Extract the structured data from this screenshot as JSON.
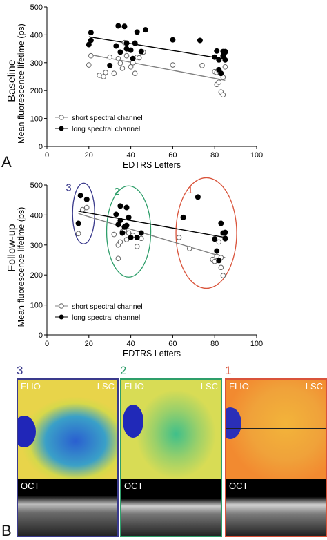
{
  "panels": {
    "a_label": "A",
    "b_label": "B",
    "baseline_row_label": "Baseline",
    "followup_row_label": "Follow-up"
  },
  "legend": {
    "short_label": "short spectral channel",
    "long_label": "long spectral channel"
  },
  "colors": {
    "short": "#ffffff",
    "long": "#000000",
    "group1": "#d9533a",
    "group2": "#2e9e6a",
    "group3": "#3a3a8c",
    "regression_short": "#808080",
    "regression_long": "#000000"
  },
  "chart_data": [
    {
      "type": "scatter",
      "xlabel": "EDTRS Letters",
      "ylabel": "Mean fluorescence lifetime (ps)",
      "xlim": [
        0,
        100
      ],
      "ylim": [
        0,
        500
      ],
      "xticks": [
        0,
        20,
        40,
        60,
        80,
        100
      ],
      "yticks": [
        0,
        100,
        200,
        300,
        400,
        500
      ],
      "legend_position": "bottom-left",
      "series": [
        {
          "name": "short spectral channel",
          "marker": "open-circle",
          "points": [
            [
              20,
              292
            ],
            [
              21,
              325
            ],
            [
              25,
              255
            ],
            [
              27,
              250
            ],
            [
              28,
              265
            ],
            [
              30,
              320
            ],
            [
              32,
              262
            ],
            [
              34,
              315
            ],
            [
              35,
              298
            ],
            [
              36,
              280
            ],
            [
              37,
              372
            ],
            [
              38,
              325
            ],
            [
              40,
              285
            ],
            [
              41,
              300
            ],
            [
              42,
              262
            ],
            [
              43,
              320
            ],
            [
              44,
              318
            ],
            [
              46,
              338
            ],
            [
              60,
              292
            ],
            [
              74,
              290
            ],
            [
              80,
              268
            ],
            [
              81,
              265
            ],
            [
              81,
              222
            ],
            [
              82,
              270
            ],
            [
              82,
              230
            ],
            [
              83,
              195
            ],
            [
              84,
              185
            ],
            [
              84,
              248
            ],
            [
              85,
              285
            ]
          ],
          "fit": [
            [
              20,
              330
            ],
            [
              85,
              237
            ]
          ]
        },
        {
          "name": "long spectral channel",
          "marker": "filled-circle",
          "points": [
            [
              20,
              365
            ],
            [
              21,
              380
            ],
            [
              21,
              408
            ],
            [
              30,
              290
            ],
            [
              33,
              360
            ],
            [
              34,
              432
            ],
            [
              35,
              338
            ],
            [
              37,
              430
            ],
            [
              38,
              370
            ],
            [
              38,
              350
            ],
            [
              40,
              345
            ],
            [
              41,
              315
            ],
            [
              42,
              370
            ],
            [
              43,
              410
            ],
            [
              45,
              340
            ],
            [
              47,
              418
            ],
            [
              60,
              382
            ],
            [
              73,
              380
            ],
            [
              80,
              320
            ],
            [
              81,
              342
            ],
            [
              82,
              275
            ],
            [
              82,
              310
            ],
            [
              83,
              262
            ],
            [
              84,
              325
            ],
            [
              84,
              340
            ],
            [
              85,
              340
            ],
            [
              85,
              338
            ],
            [
              85,
              310
            ]
          ],
          "fit": [
            [
              20,
              393
            ],
            [
              85,
              313
            ]
          ]
        }
      ]
    },
    {
      "type": "scatter",
      "xlabel": "EDTRS Letters",
      "ylabel": "Mean fluorescence lifetime (ps)",
      "xlim": [
        0,
        100
      ],
      "ylim": [
        0,
        500
      ],
      "xticks": [
        0,
        20,
        40,
        60,
        80,
        100
      ],
      "yticks": [
        0,
        100,
        200,
        300,
        400,
        500
      ],
      "legend_position": "bottom-left",
      "annotations": [
        "3",
        "2",
        "1"
      ],
      "series": [
        {
          "name": "short spectral channel",
          "marker": "open-circle",
          "points": [
            [
              15,
              338
            ],
            [
              17,
              418
            ],
            [
              19,
              425
            ],
            [
              32,
              335
            ],
            [
              34,
              255
            ],
            [
              34,
              300
            ],
            [
              35,
              310
            ],
            [
              36,
              345
            ],
            [
              37,
              350
            ],
            [
              38,
              318
            ],
            [
              39,
              340
            ],
            [
              41,
              332
            ],
            [
              43,
              295
            ],
            [
              45,
              322
            ],
            [
              63,
              325
            ],
            [
              68,
              288
            ],
            [
              79,
              252
            ],
            [
              80,
              245
            ],
            [
              81,
              262
            ],
            [
              82,
              310
            ],
            [
              83,
              258
            ],
            [
              83,
              225
            ],
            [
              84,
              198
            ],
            [
              84,
              335
            ],
            [
              85,
              320
            ]
          ],
          "fit": [
            [
              15,
              405
            ],
            [
              85,
              258
            ]
          ]
        },
        {
          "name": "long spectral channel",
          "marker": "filled-circle",
          "points": [
            [
              15,
              372
            ],
            [
              16,
              465
            ],
            [
              19,
              452
            ],
            [
              33,
              402
            ],
            [
              34,
              368
            ],
            [
              35,
              382
            ],
            [
              35,
              430
            ],
            [
              36,
              340
            ],
            [
              37,
              360
            ],
            [
              38,
              425
            ],
            [
              38,
              365
            ],
            [
              39,
              392
            ],
            [
              40,
              325
            ],
            [
              43,
              325
            ],
            [
              45,
              340
            ],
            [
              65,
              392
            ],
            [
              72,
              460
            ],
            [
              80,
              320
            ],
            [
              81,
              280
            ],
            [
              82,
              248
            ],
            [
              83,
              372
            ],
            [
              84,
              340
            ],
            [
              85,
              342
            ],
            [
              85,
              322
            ]
          ],
          "fit": [
            [
              15,
              413
            ],
            [
              85,
              325
            ]
          ]
        }
      ]
    }
  ],
  "images": {
    "tiles": [
      {
        "number": "3",
        "flio_label": "FLIO",
        "lsc_label": "LSC",
        "oct_label": "OCT"
      },
      {
        "number": "2",
        "flio_label": "FLIO",
        "lsc_label": "LSC",
        "oct_label": "OCT"
      },
      {
        "number": "1",
        "flio_label": "FLIO",
        "lsc_label": "LSC",
        "oct_label": "OCT"
      }
    ]
  }
}
